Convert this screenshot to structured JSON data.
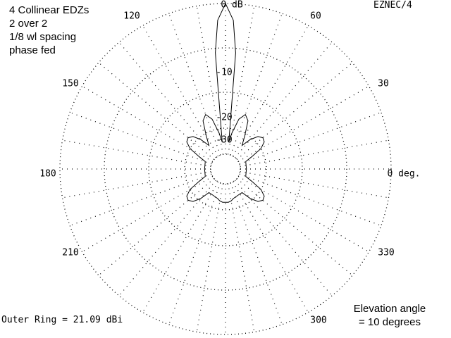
{
  "window": {
    "title_lines": [
      "4 Collinear EDZs",
      "2 over 2",
      "1/8 wl spacing",
      "phase fed"
    ],
    "software": "EZNEC/4",
    "outer_ring_text": "Outer Ring = 21.09 dBi",
    "elevation_lines": [
      "Elevation angle",
      "= 10 degrees"
    ]
  },
  "chart_data": {
    "type": "polar",
    "angle_labels": [
      {
        "angle": 0,
        "text": "0 deg."
      },
      {
        "angle": 30,
        "text": "30"
      },
      {
        "angle": 60,
        "text": "60"
      },
      {
        "angle": 120,
        "text": "120"
      },
      {
        "angle": 150,
        "text": "150"
      },
      {
        "angle": 180,
        "text": "180"
      },
      {
        "angle": 210,
        "text": "210"
      },
      {
        "angle": 300,
        "text": "300"
      },
      {
        "angle": 330,
        "text": "330"
      }
    ],
    "ring_labels": [
      {
        "db": 0,
        "text": "0 dB"
      },
      {
        "db": -10,
        "text": "-10"
      },
      {
        "db": -20,
        "text": "-20"
      },
      {
        "db": -30,
        "text": "-30"
      }
    ],
    "series": [
      {
        "unit": "dB relative to outer ring",
        "points": [
          {
            "az": 0,
            "db": -35.5
          },
          {
            "az": 10,
            "db": -35.5
          },
          {
            "az": 20,
            "db": -35
          },
          {
            "az": 25,
            "db": -30
          },
          {
            "az": 30,
            "db": -24
          },
          {
            "az": 35,
            "db": -21.5
          },
          {
            "az": 40,
            "db": -21
          },
          {
            "az": 45,
            "db": -22
          },
          {
            "az": 50,
            "db": -25
          },
          {
            "az": 55,
            "db": -30
          },
          {
            "az": 60,
            "db": -25
          },
          {
            "az": 65,
            "db": -19.5
          },
          {
            "az": 70,
            "db": -18
          },
          {
            "az": 75,
            "db": -20
          },
          {
            "az": 80,
            "db": -26
          },
          {
            "az": 83,
            "db": -31
          },
          {
            "az": 85,
            "db": -6
          },
          {
            "az": 87,
            "db": -1.8
          },
          {
            "az": 90,
            "db": 0
          },
          {
            "az": 93,
            "db": -1.8
          },
          {
            "az": 95,
            "db": -6
          },
          {
            "az": 97,
            "db": -31
          },
          {
            "az": 100,
            "db": -26
          },
          {
            "az": 105,
            "db": -20
          },
          {
            "az": 110,
            "db": -18
          },
          {
            "az": 115,
            "db": -19.5
          },
          {
            "az": 120,
            "db": -25
          },
          {
            "az": 125,
            "db": -30
          },
          {
            "az": 130,
            "db": -25
          },
          {
            "az": 135,
            "db": -22
          },
          {
            "az": 140,
            "db": -21
          },
          {
            "az": 145,
            "db": -21.5
          },
          {
            "az": 150,
            "db": -24
          },
          {
            "az": 155,
            "db": -30
          },
          {
            "az": 160,
            "db": -35
          },
          {
            "az": 170,
            "db": -35.5
          },
          {
            "az": 180,
            "db": -35.5
          },
          {
            "az": 190,
            "db": -35.5
          },
          {
            "az": 200,
            "db": -35
          },
          {
            "az": 205,
            "db": -30
          },
          {
            "az": 210,
            "db": -24
          },
          {
            "az": 215,
            "db": -21.5
          },
          {
            "az": 220,
            "db": -21
          },
          {
            "az": 225,
            "db": -22
          },
          {
            "az": 230,
            "db": -25
          },
          {
            "az": 235,
            "db": -30
          },
          {
            "az": 240,
            "db": -30
          },
          {
            "az": 250,
            "db": -29.5
          },
          {
            "az": 255,
            "db": -29
          },
          {
            "az": 260,
            "db": -28
          },
          {
            "az": 265,
            "db": -27.5
          },
          {
            "az": 270,
            "db": -27.5
          },
          {
            "az": 275,
            "db": -27.5
          },
          {
            "az": 280,
            "db": -28
          },
          {
            "az": 285,
            "db": -29
          },
          {
            "az": 290,
            "db": -29.5
          },
          {
            "az": 300,
            "db": -30
          },
          {
            "az": 305,
            "db": -30
          },
          {
            "az": 310,
            "db": -25
          },
          {
            "az": 315,
            "db": -22
          },
          {
            "az": 320,
            "db": -21
          },
          {
            "az": 325,
            "db": -21.5
          },
          {
            "az": 330,
            "db": -24
          },
          {
            "az": 335,
            "db": -30
          },
          {
            "az": 340,
            "db": -35
          },
          {
            "az": 350,
            "db": -35.5
          },
          {
            "az": 360,
            "db": -35.5
          }
        ]
      }
    ]
  }
}
